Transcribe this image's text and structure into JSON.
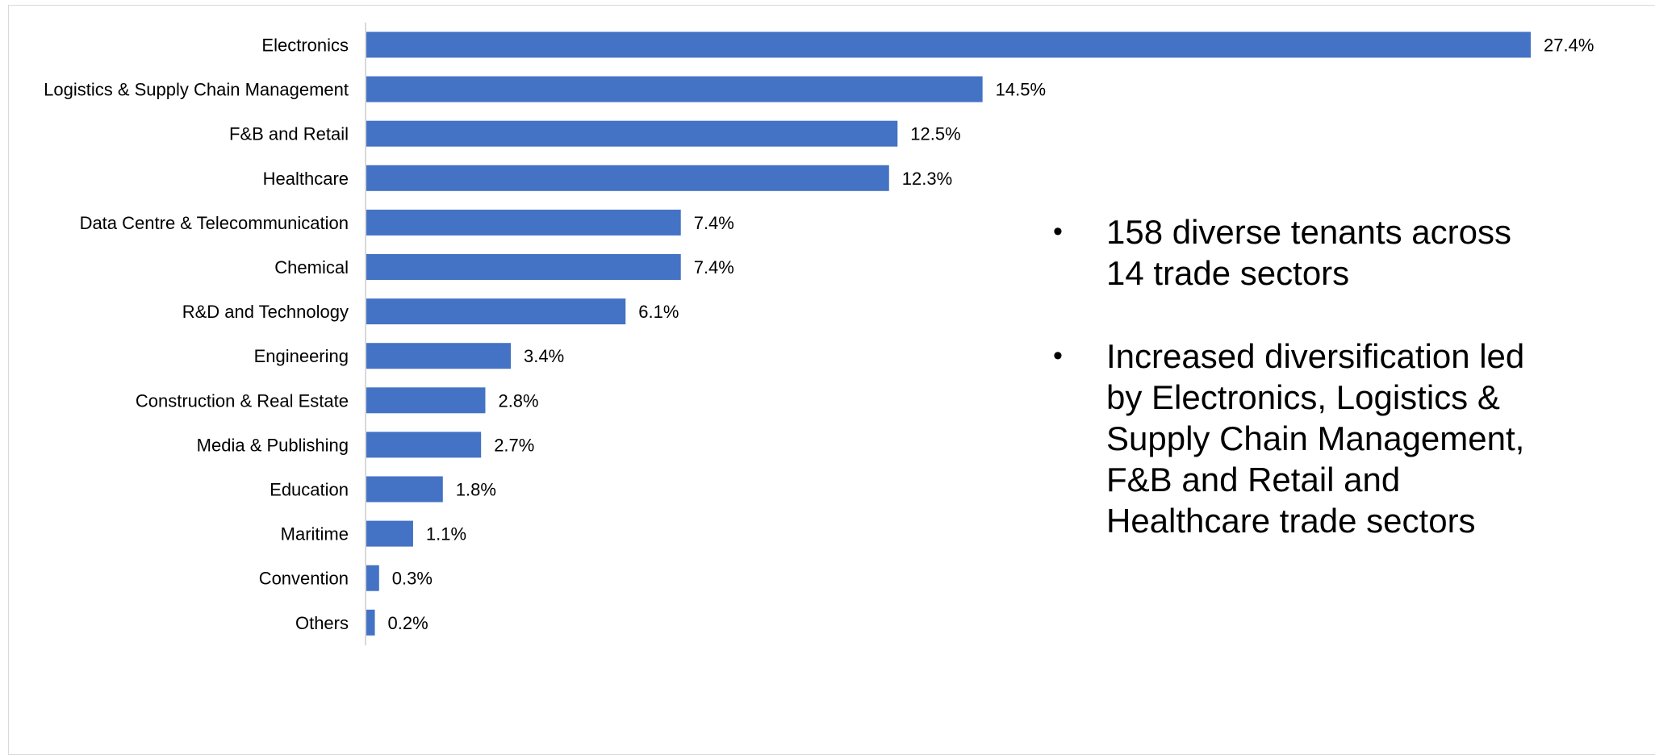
{
  "chart_data": {
    "type": "bar",
    "orientation": "horizontal",
    "categories": [
      "Electronics",
      "Logistics & Supply Chain Management",
      "F&B and Retail",
      "Healthcare",
      "Data Centre & Telecommunication",
      "Chemical",
      "R&D and Technology",
      "Engineering",
      "Construction & Real Estate",
      "Media & Publishing",
      "Education",
      "Maritime",
      "Convention",
      "Others"
    ],
    "values": [
      27.4,
      14.5,
      12.5,
      12.3,
      7.4,
      7.4,
      6.1,
      3.4,
      2.8,
      2.7,
      1.8,
      1.1,
      0.3,
      0.2
    ],
    "value_labels": [
      "27.4%",
      "14.5%",
      "12.5%",
      "12.3%",
      "7.4%",
      "7.4%",
      "6.1%",
      "3.4%",
      "2.8%",
      "2.7%",
      "1.8%",
      "1.1%",
      "0.3%",
      "0.2%"
    ],
    "title": "",
    "xlabel": "",
    "ylabel": "",
    "xlim": [
      0,
      27.4
    ],
    "grid": false,
    "legend": "none",
    "bar_color": "#4472C4"
  },
  "notes": [
    "158 diverse tenants across 14 trade sectors",
    "Increased diversification led by Electronics, Logistics & Supply Chain Management, F&B and Retail and Healthcare trade sectors"
  ],
  "bullet_glyph": "•"
}
